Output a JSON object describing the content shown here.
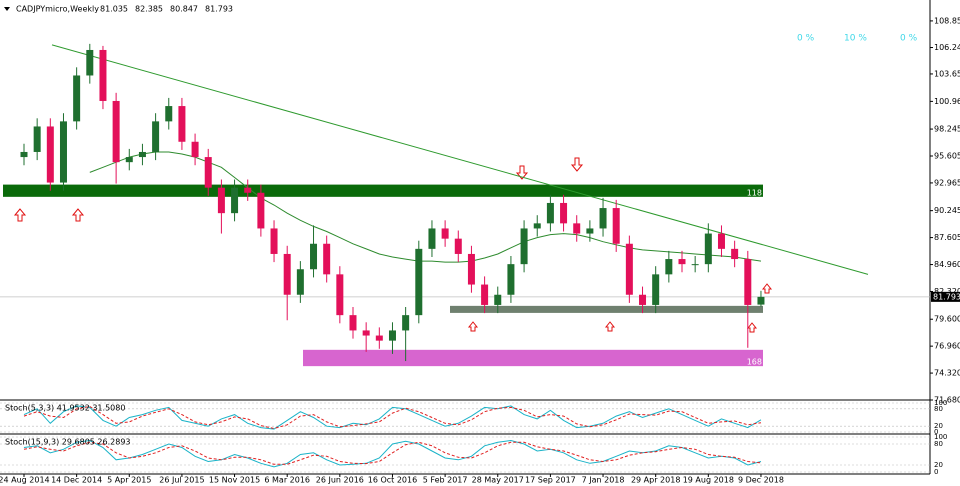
{
  "chart_data": {
    "type": "candlestick",
    "title": "CADJPYmicro,Weekly",
    "header_values": [
      81.035,
      82.385,
      80.847,
      81.793
    ],
    "percent_labels": [
      "0 %",
      "10 %",
      "0 %"
    ],
    "categories": [
      "24 Aug 2014",
      null,
      null,
      null,
      "14 Dec 2014",
      null,
      null,
      null,
      "5 Apr 2015",
      null,
      null,
      null,
      "26 Jul 2015",
      null,
      null,
      null,
      "15 Nov 2015",
      null,
      null,
      null,
      "6 Mar 2016",
      null,
      null,
      null,
      "26 Jun 2016",
      null,
      null,
      null,
      "16 Oct 2016",
      null,
      null,
      null,
      "5 Feb 2017",
      null,
      null,
      null,
      "28 May 2017",
      null,
      null,
      null,
      "17 Sep 2017",
      null,
      null,
      null,
      "7 Jan 2018",
      null,
      null,
      null,
      "29 Apr 2018",
      null,
      null,
      null,
      "19 Aug 2018",
      null,
      null,
      null,
      "9 Dec 2018"
    ],
    "open": [
      95.5,
      96.0,
      98.5,
      93.0,
      99.0,
      103.5,
      106.0,
      101.0,
      95.0,
      95.5,
      96.0,
      99.0,
      100.5,
      97.0,
      95.5,
      92.5,
      90.0,
      92.5,
      92.0,
      88.5,
      86.0,
      82.0,
      84.5,
      87.0,
      84.0,
      80.0,
      78.5,
      78.0,
      77.5,
      78.5,
      80.0,
      86.5,
      88.5,
      87.5,
      86.0,
      83.0,
      81.0,
      82.0,
      85.0,
      88.5,
      89.0,
      91.0,
      89.0,
      88.0,
      88.5,
      90.5,
      87.0,
      82.0,
      81.0,
      84.0,
      85.5,
      85.0,
      85.0,
      88.0,
      86.5,
      85.5,
      81.035
    ],
    "high": [
      96.8,
      99.3,
      99.3,
      99.8,
      104.3,
      106.6,
      106.4,
      101.8,
      96.3,
      96.8,
      99.8,
      101.3,
      101.3,
      97.8,
      96.3,
      93.3,
      93.3,
      93.3,
      92.8,
      89.3,
      86.8,
      85.3,
      88.8,
      87.8,
      84.8,
      80.8,
      79.3,
      78.8,
      79.3,
      80.8,
      87.3,
      89.3,
      89.3,
      88.3,
      86.8,
      83.8,
      82.8,
      85.8,
      89.3,
      89.8,
      91.8,
      91.8,
      89.8,
      89.3,
      91.5,
      91.3,
      87.8,
      82.8,
      84.8,
      86.3,
      86.3,
      85.8,
      89.0,
      88.8,
      87.3,
      86.3,
      82.385
    ],
    "low": [
      94.7,
      95.2,
      92.2,
      92.2,
      98.2,
      102.7,
      100.2,
      92.9,
      94.2,
      94.7,
      95.2,
      98.2,
      96.2,
      94.7,
      91.7,
      88.0,
      89.2,
      91.2,
      87.7,
      85.2,
      79.5,
      81.2,
      83.7,
      83.2,
      79.2,
      77.7,
      76.4,
      76.7,
      76.2,
      75.5,
      79.2,
      85.7,
      86.7,
      85.2,
      82.2,
      80.2,
      80.2,
      81.2,
      84.2,
      87.7,
      88.2,
      88.2,
      87.2,
      87.2,
      87.7,
      86.2,
      81.2,
      80.2,
      80.2,
      83.2,
      84.2,
      84.2,
      84.2,
      85.7,
      84.7,
      76.8,
      80.847
    ],
    "close": [
      96.0,
      98.5,
      93.0,
      99.0,
      103.5,
      106.0,
      101.0,
      95.0,
      95.5,
      96.0,
      99.0,
      100.5,
      97.0,
      95.5,
      92.5,
      90.0,
      92.5,
      92.0,
      88.5,
      86.0,
      82.0,
      84.5,
      87.0,
      84.0,
      80.0,
      78.5,
      78.0,
      77.5,
      78.5,
      80.0,
      86.5,
      88.5,
      87.5,
      86.0,
      83.0,
      81.0,
      82.0,
      85.0,
      88.5,
      89.0,
      91.0,
      89.0,
      88.0,
      88.5,
      90.5,
      87.0,
      82.0,
      81.0,
      84.0,
      85.5,
      85.0,
      85.0,
      88.0,
      86.5,
      85.5,
      81.0,
      81.793
    ],
    "up_color": "#1f6f2f",
    "down_color": "#e3105a",
    "ylim": [
      71.68,
      110.9
    ],
    "yticks": [
      108.85,
      106.24,
      103.65,
      100.96,
      98.245,
      95.605,
      92.965,
      90.245,
      87.605,
      {
        "value": 84.96,
        "label": "84.960"
      },
      {
        "value": 82.32,
        "label": "82.320"
      },
      {
        "value": 79.6,
        "label": "79.600"
      },
      {
        "value": 76.96,
        "label": "76.960"
      },
      {
        "value": 74.32,
        "label": "74.320"
      },
      {
        "value": 71.68,
        "label": "71.680"
      }
    ],
    "last_price": 81.793,
    "moving_average": {
      "color": "#2e8b2e",
      "values": [
        null,
        null,
        null,
        null,
        null,
        94.0,
        94.5,
        95.0,
        95.5,
        95.8,
        96.0,
        96.0,
        95.8,
        95.5,
        95.0,
        94.5,
        93.5,
        92.5,
        91.5,
        90.8,
        90.0,
        89.3,
        88.7,
        88.2,
        87.6,
        87.0,
        86.5,
        86.0,
        85.7,
        85.5,
        85.3,
        85.3,
        85.2,
        85.2,
        85.3,
        85.6,
        86.0,
        86.6,
        87.2,
        87.6,
        87.9,
        88.0,
        87.9,
        87.6,
        87.2,
        86.9,
        86.6,
        86.4,
        86.3,
        86.2,
        86.1,
        86.0,
        85.9,
        85.8,
        85.7,
        85.5,
        85.3
      ]
    },
    "trendline": {
      "color": "#2e9a2e",
      "values": [
        106.5,
        84.0
      ]
    },
    "zones": [
      {
        "label": "118",
        "low": 91.6,
        "high": 92.8,
        "color": "#0a6a0a"
      },
      {
        "low": 80.22,
        "high": 80.91,
        "color": "#6f806f"
      },
      {
        "label": "168",
        "low": 75.0,
        "high": 76.6,
        "color": "#d765cf"
      }
    ],
    "indicators": [
      {
        "title": "Stoch(5,3,3) 41.9532 31.5080",
        "ylim": [
          0,
          100
        ],
        "yticks": [
          100,
          80,
          20,
          0
        ],
        "series": [
          {
            "color": "#1ab3c8",
            "values": [
              60,
              80,
              30,
              70,
              90,
              85,
              40,
              20,
              50,
              60,
              75,
              85,
              40,
              30,
              20,
              45,
              60,
              30,
              15,
              10,
              40,
              70,
              50,
              20,
              15,
              30,
              25,
              45,
              85,
              80,
              60,
              40,
              20,
              30,
              55,
              85,
              80,
              90,
              60,
              45,
              75,
              40,
              15,
              20,
              30,
              55,
              70,
              50,
              65,
              80,
              60,
              40,
              20,
              45,
              30,
              15,
              42
            ]
          },
          {
            "color": "#e02020",
            "values": [
              55,
              70,
              55,
              50,
              80,
              88,
              60,
              30,
              35,
              55,
              68,
              80,
              60,
              35,
              25,
              35,
              52,
              45,
              22,
              12,
              25,
              55,
              60,
              35,
              18,
              22,
              28,
              35,
              65,
              82,
              70,
              50,
              30,
              25,
              42,
              70,
              82,
              85,
              75,
              52,
              60,
              55,
              28,
              18,
              25,
              42,
              62,
              60,
              58,
              72,
              70,
              50,
              30,
              35,
              38,
              25,
              32
            ]
          }
        ]
      },
      {
        "title": "Stoch(15,9,3) 29.6805 26.2893",
        "ylim": [
          0,
          100
        ],
        "yticks": [
          100,
          80,
          20,
          0
        ],
        "series": [
          {
            "color": "#1ab3c8",
            "values": [
              70,
              75,
              55,
              65,
              85,
              90,
              70,
              35,
              40,
              50,
              65,
              80,
              70,
              45,
              30,
              35,
              50,
              40,
              25,
              15,
              25,
              50,
              55,
              35,
              20,
              22,
              25,
              40,
              80,
              88,
              80,
              60,
              40,
              35,
              45,
              75,
              85,
              90,
              80,
              60,
              65,
              55,
              35,
              25,
              30,
              45,
              60,
              55,
              60,
              75,
              70,
              55,
              40,
              45,
              40,
              20,
              30
            ]
          },
          {
            "color": "#e02020",
            "values": [
              65,
              72,
              65,
              60,
              75,
              85,
              80,
              55,
              40,
              45,
              55,
              70,
              75,
              60,
              40,
              35,
              42,
              42,
              35,
              22,
              22,
              35,
              48,
              45,
              30,
              25,
              24,
              30,
              55,
              78,
              85,
              75,
              55,
              42,
              40,
              55,
              75,
              85,
              85,
              72,
              65,
              60,
              48,
              35,
              30,
              35,
              48,
              55,
              58,
              65,
              70,
              65,
              50,
              45,
              42,
              30,
              26
            ]
          }
        ]
      }
    ]
  }
}
